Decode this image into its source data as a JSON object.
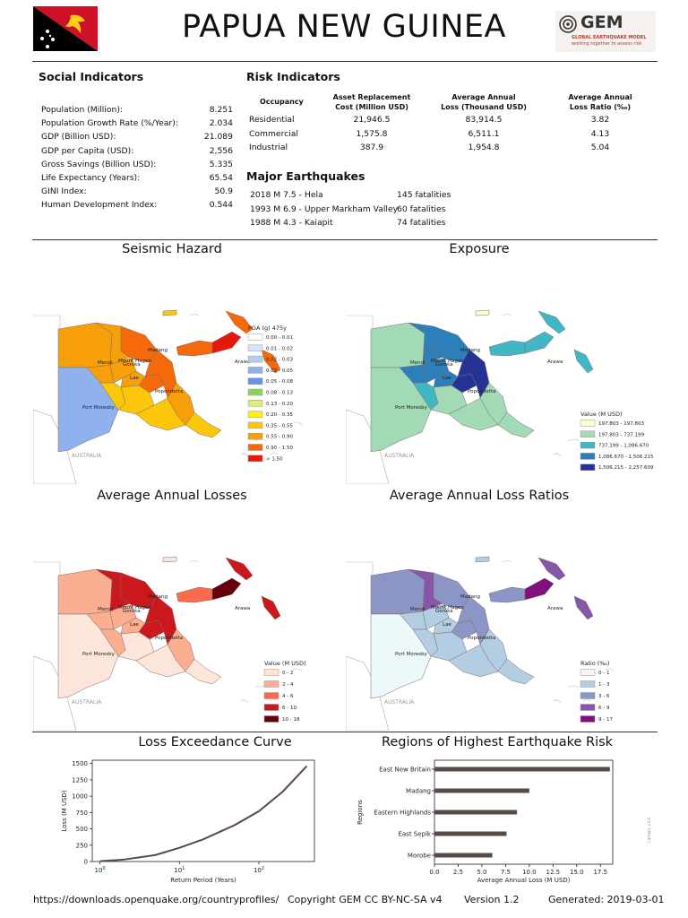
{
  "header": {
    "title": "PAPUA NEW GUINEA",
    "logo_text": "GEM",
    "logo_sub1": "GLOBAL EARTHQUAKE MODEL",
    "logo_sub2": "working together to assess risk",
    "flag_colors": {
      "red": "#CE1126",
      "black": "#000000",
      "gold": "#FCD116"
    }
  },
  "social": {
    "heading": "Social Indicators",
    "rows": [
      {
        "label": "Population (Million):",
        "value": "8.251"
      },
      {
        "label": "Population Growth Rate (%/Year):",
        "value": "2.034"
      },
      {
        "label": "GDP (Billion USD):",
        "value": "21.089"
      },
      {
        "label": "GDP per Capita (USD):",
        "value": "2,556"
      },
      {
        "label": "Gross Savings (Billion USD):",
        "value": "5.335"
      },
      {
        "label": "Life Expectancy (Years):",
        "value": "65.54"
      },
      {
        "label": "GINI Index:",
        "value": "50.9"
      },
      {
        "label": "Human Development Index:",
        "value": "0.544"
      }
    ]
  },
  "risk": {
    "heading": "Risk Indicators",
    "col_occupancy": "Occupancy",
    "col_asset_1": "Asset Replacement",
    "col_asset_2": "Cost (Million USD)",
    "col_aal_1": "Average Annual",
    "col_aal_2": "Loss (Thousand USD)",
    "col_ratio_1": "Average Annual",
    "col_ratio_2": "Loss Ratio (‰)",
    "rows": [
      {
        "occupancy": "Residential",
        "asset": "21,946.5",
        "aal": "83,914.5",
        "ratio": "3.82"
      },
      {
        "occupancy": "Commercial",
        "asset": "1,575.8",
        "aal": "6,511.1",
        "ratio": "4.13"
      },
      {
        "occupancy": "Industrial",
        "asset": "387.9",
        "aal": "1,954.8",
        "ratio": "5.04"
      }
    ]
  },
  "earthquakes": {
    "heading": "Major Earthquakes",
    "rows": [
      {
        "event": "2018 M 7.5 - Hela",
        "fatalities": "145 fatalities"
      },
      {
        "event": "1993 M 6.9 - Upper Markham Valley",
        "fatalities": "60 fatalities"
      },
      {
        "event": "1988 M 4.3 - Kaiapit",
        "fatalities": "74 fatalities"
      }
    ]
  },
  "maps": {
    "labels": {
      "madang": "Madang",
      "mount_hagen": "Mount Hagen",
      "goroka": "Goroka",
      "mendi": "Mendi",
      "lae": "Lae",
      "popondetta": "Popondetta",
      "port_moresby": "Port Moresby",
      "arawa": "Arawa",
      "australia": "AUSTRALIA"
    },
    "seismic": {
      "title": "Seismic Hazard",
      "legend_title": "PGA (g) 475y",
      "legend": [
        {
          "label": "0.00 - 0.01",
          "color": "#ffffff"
        },
        {
          "label": "0.01 - 0.02",
          "color": "#d6e4f7"
        },
        {
          "label": "0.02 - 0.03",
          "color": "#b3cdf3"
        },
        {
          "label": "0.03 - 0.05",
          "color": "#8fb2ee"
        },
        {
          "label": "0.05 - 0.08",
          "color": "#6b8fe4"
        },
        {
          "label": "0.08 - 0.13",
          "color": "#8fcf5f"
        },
        {
          "label": "0.13 - 0.20",
          "color": "#dbee7a"
        },
        {
          "label": "0.20 - 0.35",
          "color": "#fff200"
        },
        {
          "label": "0.35 - 0.55",
          "color": "#fcc60a"
        },
        {
          "label": "0.55 - 0.90",
          "color": "#f7a00a"
        },
        {
          "label": "0.90 - 1.50",
          "color": "#f46a0a"
        },
        {
          "label": "> 1.50",
          "color": "#e8170b"
        }
      ]
    },
    "exposure": {
      "title": "Exposure",
      "legend_title": "Value (M USD)",
      "legend": [
        {
          "label": "197.803 - 197.803",
          "color": "#ffffcc"
        },
        {
          "label": "197.803 - 737.199",
          "color": "#a1dab4"
        },
        {
          "label": "737.199 - 1,086.670",
          "color": "#41b6c4"
        },
        {
          "label": "1,086.670 - 1,506.215",
          "color": "#2c7fb8"
        },
        {
          "label": "1,506.215 - 2,257.609",
          "color": "#253494"
        }
      ]
    },
    "aal": {
      "title": "Average Annual Losses",
      "legend_title": "Value (M USD)",
      "legend": [
        {
          "label": "0 - 2",
          "color": "#fee5d9"
        },
        {
          "label": "2 - 4",
          "color": "#fcae91"
        },
        {
          "label": "4 - 6",
          "color": "#fb6a4a"
        },
        {
          "label": "6 - 10",
          "color": "#cb181d"
        },
        {
          "label": "10 - 18",
          "color": "#67000d"
        }
      ]
    },
    "aalr": {
      "title": "Average Annual Loss Ratios",
      "legend_title": "Ratio (‰)",
      "legend": [
        {
          "label": "0 - 1",
          "color": "#edf8fb"
        },
        {
          "label": "1 - 3",
          "color": "#b3cde3"
        },
        {
          "label": "3 - 6",
          "color": "#8c96c6"
        },
        {
          "label": "6 - 9",
          "color": "#8856a7"
        },
        {
          "label": "9 - 17",
          "color": "#810f7c"
        }
      ]
    }
  },
  "chart_data": [
    {
      "type": "line",
      "title": "Loss Exceedance Curve",
      "xlabel": "Return Period (Years)",
      "ylabel": "Loss (M USD)",
      "xscale": "log",
      "xlim": [
        0.8,
        500
      ],
      "ylim": [
        0,
        1550
      ],
      "xticks": [
        "10^0",
        "10^1",
        "10^2"
      ],
      "yticks": [
        0,
        250,
        500,
        750,
        1000,
        1250,
        1500
      ],
      "x": [
        1,
        2,
        5,
        10,
        20,
        50,
        100,
        200,
        400
      ],
      "y": [
        5,
        30,
        100,
        210,
        340,
        560,
        770,
        1070,
        1460
      ],
      "color": "#5a4a46"
    },
    {
      "type": "bar",
      "orientation": "horizontal",
      "title": "Regions of Highest Earthquake Risk",
      "xlabel": "Average Annual Loss (M USD)",
      "ylabel": "Regions",
      "categories": [
        "East New Britain",
        "Madang",
        "Eastern Highlands",
        "East Sepik",
        "Morobe"
      ],
      "values": [
        18.5,
        10.0,
        8.7,
        7.6,
        6.1
      ],
      "xlim": [
        0,
        18.8
      ],
      "xticks": [
        "0.0",
        "2.5",
        "5.0",
        "7.5",
        "10.0",
        "12.5",
        "15.0",
        "17.5"
      ],
      "color": "#5a4a46"
    }
  ],
  "footer": {
    "url": "https://downloads.openquake.org/countryprofiles/",
    "copyright": "Copyright GEM CC BY-NC-SA v4",
    "version": "Version 1.2",
    "generated": "Generated: 2019-03-01",
    "side_note": "Cartoon: v.0.0"
  }
}
